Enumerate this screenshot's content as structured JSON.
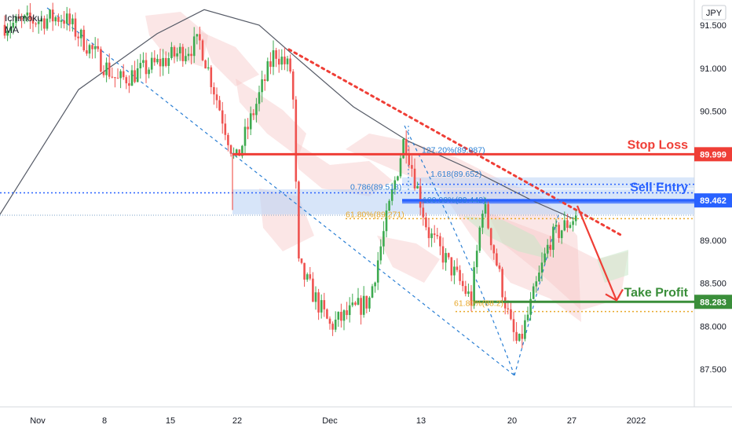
{
  "indicators": [
    "Ichimoku",
    "MA"
  ],
  "currency": "JPY",
  "colors": {
    "up": "#26a69a",
    "up_body": "#3daa4f",
    "down": "#ef5350",
    "stop": "#ef3e36",
    "entry": "#2962ff",
    "tp": "#3a8e3a",
    "fib_gold": "#e8a82a",
    "trend_blue": "#2a7fd4"
  },
  "chart_data": {
    "type": "candlestick",
    "title": "",
    "xlabel": "",
    "ylabel": "",
    "ylim": [
      87.1,
      91.65
    ],
    "x_ticks": [
      "Nov",
      "8",
      "15",
      "22",
      "Dec",
      "13",
      "20",
      "27",
      "2022"
    ],
    "y_ticks": [
      "91.500",
      "91.000",
      "90.500",
      "89.999",
      "89.462",
      "89.000",
      "88.500",
      "88.283",
      "88.000",
      "87.500"
    ],
    "price_tags": [
      {
        "label": "Stop Loss",
        "value": 89.999,
        "text": "89.999",
        "color": "#ef3e36"
      },
      {
        "label": "Sell Entry",
        "value": 89.462,
        "text": "89.462",
        "color": "#2962ff"
      },
      {
        "label": "Take Profit",
        "value": 88.283,
        "text": "88.283",
        "color": "#3a8e3a"
      }
    ],
    "fib_labels": [
      {
        "text": "127.20%(89.987)",
        "color": "#2a7fd4"
      },
      {
        "text": "1.618(89.652)",
        "color": "#2a7fd4"
      },
      {
        "text": "0.786(89.513)",
        "color": "#2a7fd4"
      },
      {
        "text": "100.00%(89.442)",
        "color": "#2a7fd4"
      },
      {
        "text": "61.80%(89.271)",
        "color": "#e8a82a"
      },
      {
        "text": "61.80%(88.2)",
        "color": "#e8a82a"
      }
    ],
    "series": [
      {
        "name": "Price",
        "points": [
          [
            4,
            91.5
          ],
          [
            80,
            91.6
          ],
          [
            150,
            90.85
          ],
          [
            200,
            91.05
          ],
          [
            255,
            91.3
          ],
          [
            300,
            89.9
          ],
          [
            350,
            91.2
          ],
          [
            372,
            90.95
          ],
          [
            380,
            88.7
          ],
          [
            420,
            88.0
          ],
          [
            470,
            88.3
          ],
          [
            515,
            90.2
          ],
          [
            545,
            89.1
          ],
          [
            600,
            88.3
          ],
          [
            615,
            89.45
          ],
          [
            650,
            88.0
          ],
          [
            660,
            87.75
          ],
          [
            700,
            89.0
          ],
          [
            735,
            89.3
          ]
        ]
      },
      {
        "name": "MA",
        "points": [
          [
            0,
            89.3
          ],
          [
            100,
            90.75
          ],
          [
            200,
            91.4
          ],
          [
            260,
            91.68
          ],
          [
            330,
            91.5
          ],
          [
            380,
            91.1
          ],
          [
            450,
            90.55
          ],
          [
            520,
            90.15
          ],
          [
            600,
            89.82
          ],
          [
            680,
            89.45
          ],
          [
            730,
            89.25
          ]
        ]
      },
      {
        "name": "Projection",
        "points": [
          [
            735,
            89.4
          ],
          [
            785,
            88.3
          ]
        ]
      }
    ]
  }
}
